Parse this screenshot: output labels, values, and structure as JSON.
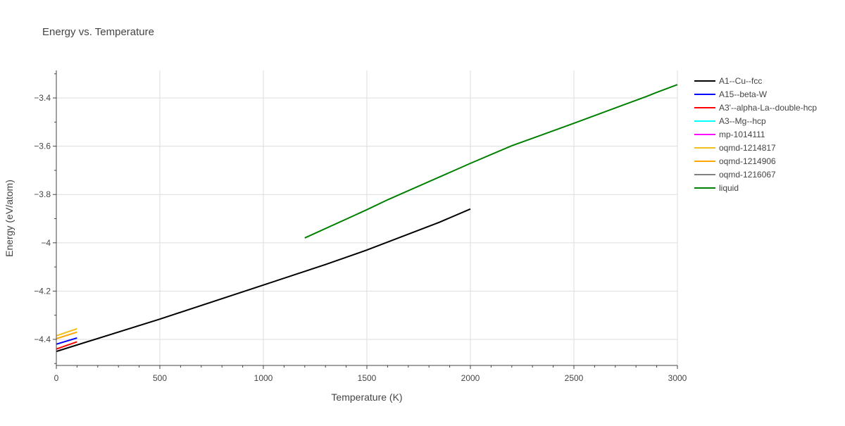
{
  "chart_data": {
    "type": "line",
    "title": "Energy vs. Temperature",
    "xlabel": "Temperature (K)",
    "ylabel": "Energy (eV/atom)",
    "xlim": [
      0,
      3000
    ],
    "ylim": [
      -4.508,
      -3.286
    ],
    "xticks": [
      0,
      500,
      1000,
      1500,
      2000,
      2500,
      3000
    ],
    "xtick_labels": [
      "0",
      "500",
      "1000",
      "1500",
      "2000",
      "2500",
      "3000"
    ],
    "yticks": [
      -4.4,
      -4.2,
      -4.0,
      -3.8,
      -3.6,
      -3.4
    ],
    "ytick_labels": [
      "−4.4",
      "−4.2",
      "−4",
      "−3.8",
      "−3.6",
      "−3.4"
    ],
    "grid": true,
    "legend_placement": "top-right",
    "series": [
      {
        "name": "A1--Cu--fcc",
        "color": "#000000",
        "x": [
          0,
          500,
          1000,
          1300,
          1500,
          1850,
          2000
        ],
        "y": [
          -4.45,
          -4.316,
          -4.175,
          -4.09,
          -4.03,
          -3.915,
          -3.86
        ]
      },
      {
        "name": "A15--beta-W",
        "color": "#0000ff",
        "x": [
          0,
          100
        ],
        "y": [
          -4.42,
          -4.394
        ]
      },
      {
        "name": "A3'--alpha-La--double-hcp",
        "color": "#ff0000",
        "x": [
          0,
          100
        ],
        "y": [
          -4.44,
          -4.41
        ]
      },
      {
        "name": "A3--Mg--hcp",
        "color": "#00ffff",
        "x": [],
        "y": []
      },
      {
        "name": "mp-1014111",
        "color": "#ff00ff",
        "x": [],
        "y": []
      },
      {
        "name": "oqmd-1214817",
        "color": "#f0c020",
        "x": [
          0,
          100
        ],
        "y": [
          -4.385,
          -4.356
        ]
      },
      {
        "name": "oqmd-1214906",
        "color": "#ffa500",
        "x": [
          0,
          100
        ],
        "y": [
          -4.397,
          -4.37
        ]
      },
      {
        "name": "oqmd-1216067",
        "color": "#808080",
        "x": [],
        "y": []
      },
      {
        "name": "liquid",
        "color": "#008000",
        "x": [
          1200,
          1500,
          1600,
          2000,
          2200,
          2500,
          2850,
          2900,
          3000
        ],
        "y": [
          -3.98,
          -3.863,
          -3.822,
          -3.671,
          -3.598,
          -3.505,
          -3.394,
          -3.377,
          -3.345
        ]
      }
    ]
  }
}
